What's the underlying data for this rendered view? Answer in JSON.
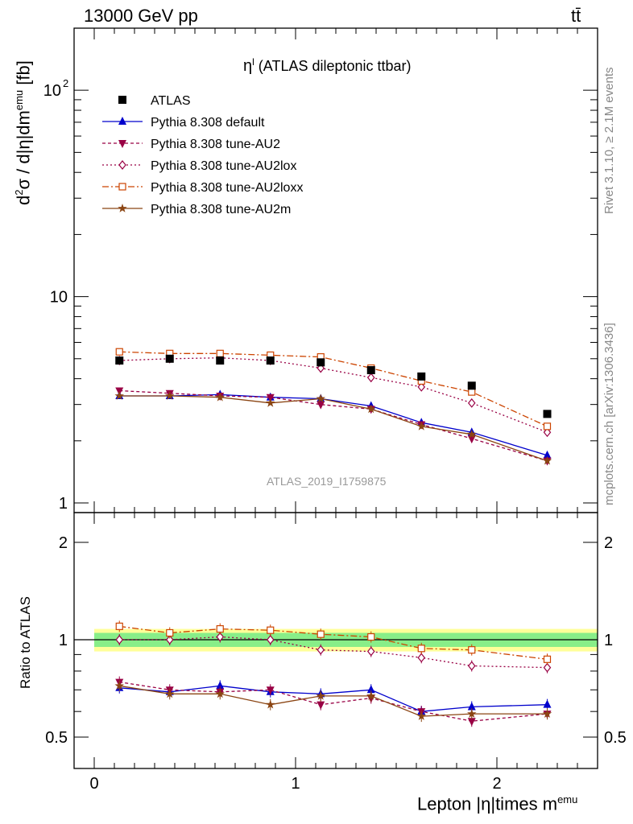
{
  "header": {
    "energy": "13000 GeV pp",
    "process": "tt̄"
  },
  "side_labels": {
    "rivet": "Rivet 3.1.10, ≥ 2.1M events",
    "mcplots": "mcplots.cern.ch [arXiv:1306.3436]"
  },
  "chart_data": {
    "type": "line",
    "title": "η^l (ATLAS dileptonic ttbar)",
    "title_main": "η",
    "title_sup": "l",
    "title_rest": " (ATLAS dileptonic ttbar)",
    "ylabel": "d²σ / d|η|dm^emu [fb]",
    "ylabel_parts": {
      "a": "d",
      "b": "2",
      "c": "σ / d|η|dm",
      "d": "emu",
      "e": " [fb]"
    },
    "xlabel": "Lepton |η|times m^emu",
    "xlabel_main": "Lepton |η|times m",
    "xlabel_sup": "emu",
    "ratio_ylabel": "Ratio to ATLAS",
    "watermark": "ATLAS_2019_I1759875",
    "xlim": [
      -0.1,
      2.5
    ],
    "ylim": [
      1,
      200
    ],
    "yscale": "log",
    "ratio_ylim": [
      0.4,
      2.5
    ],
    "xticks": [
      0,
      1,
      2
    ],
    "xtick_labels": [
      "0",
      "1",
      "2"
    ],
    "yticks_main": [
      {
        "v": 1,
        "label": "1"
      },
      {
        "v": 10,
        "label": "10"
      },
      {
        "v": 100,
        "label": "10",
        "sup": "2"
      }
    ],
    "yticks_ratio": [
      {
        "v": 0.5,
        "label": "0.5"
      },
      {
        "v": 1,
        "label": "1"
      },
      {
        "v": 2,
        "label": "2"
      }
    ],
    "x": [
      0.125,
      0.375,
      0.625,
      0.875,
      1.125,
      1.375,
      1.625,
      1.875,
      2.25
    ],
    "x_edges": [
      0,
      0.25,
      0.5,
      0.75,
      1,
      1.25,
      1.5,
      1.75,
      2,
      2.5
    ],
    "data": {
      "name": "ATLAS",
      "values": [
        4.9,
        5.0,
        4.9,
        4.9,
        4.8,
        4.4,
        4.1,
        3.7,
        2.7
      ],
      "color": "#000000",
      "band_inner": 0.05,
      "band_outer": 0.08
    },
    "series": [
      {
        "name": "Pythia 8.308 default",
        "color": "#0000cc",
        "marker": "triangle-up",
        "dash": "",
        "values": [
          3.3,
          3.3,
          3.35,
          3.25,
          3.2,
          2.95,
          2.45,
          2.2,
          1.7
        ],
        "ratio": [
          0.71,
          0.69,
          0.72,
          0.69,
          0.68,
          0.7,
          0.6,
          0.62,
          0.63
        ]
      },
      {
        "name": "Pythia 8.308 tune-AU2",
        "color": "#990044",
        "marker": "triangle-down",
        "dash": "4,3",
        "values": [
          3.5,
          3.4,
          3.3,
          3.25,
          3.0,
          2.85,
          2.4,
          2.05,
          1.6
        ],
        "ratio": [
          0.74,
          0.7,
          0.69,
          0.7,
          0.63,
          0.66,
          0.6,
          0.56,
          0.59
        ]
      },
      {
        "name": "Pythia 8.308 tune-AU2lox",
        "color": "#990044",
        "marker": "diamond-open",
        "dash": "2,3",
        "values": [
          4.9,
          5.0,
          5.05,
          4.9,
          4.5,
          4.05,
          3.65,
          3.05,
          2.2
        ],
        "ratio": [
          1.0,
          1.0,
          1.02,
          1.0,
          0.93,
          0.92,
          0.88,
          0.83,
          0.82
        ]
      },
      {
        "name": "Pythia 8.308 tune-AU2loxx",
        "color": "#cc4400",
        "marker": "square-open",
        "dash": "8,3,2,3",
        "values": [
          5.4,
          5.3,
          5.3,
          5.2,
          5.1,
          4.5,
          3.9,
          3.45,
          2.35
        ],
        "ratio": [
          1.1,
          1.05,
          1.08,
          1.07,
          1.04,
          1.02,
          0.94,
          0.93,
          0.87
        ]
      },
      {
        "name": "Pythia 8.308 tune-AU2m",
        "color": "#8b4513",
        "marker": "star",
        "dash": "",
        "values": [
          3.3,
          3.3,
          3.25,
          3.05,
          3.2,
          2.85,
          2.35,
          2.15,
          1.6
        ],
        "ratio": [
          0.72,
          0.68,
          0.68,
          0.63,
          0.67,
          0.67,
          0.58,
          0.59,
          0.59
        ]
      }
    ],
    "ratio_data": [
      1.0,
      1.0,
      1.0,
      1.0,
      1.0,
      1.0,
      1.0,
      1.0,
      1.0
    ]
  }
}
